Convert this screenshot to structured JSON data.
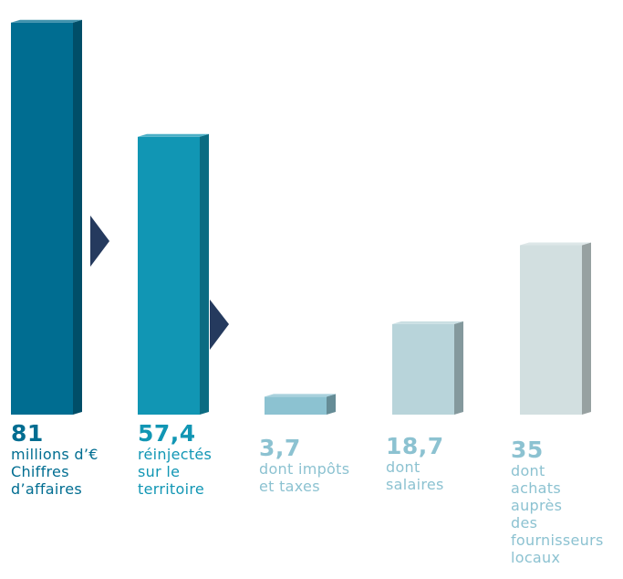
{
  "chart_data": {
    "type": "bar",
    "style": "3d-bar-waterfall",
    "values": [
      81,
      57.4,
      3.7,
      18.7,
      35
    ],
    "value_labels": [
      "81",
      "57,4",
      "3,7",
      "18,7",
      "35"
    ],
    "descriptions": [
      [
        "millions d’€",
        "Chiffres",
        "d’affaires"
      ],
      [
        "réinjectés",
        "sur le",
        "territoire"
      ],
      [
        "dont impôts",
        "et taxes"
      ],
      [
        "dont",
        "salaires"
      ],
      [
        "dont",
        "achats",
        "auprès",
        "des",
        "fournisseurs",
        "locaux"
      ]
    ],
    "colors": {
      "fronts": [
        "#006d91",
        "#1196b4",
        "#8cc2d1",
        "#b8d4da",
        "#d2dfe0"
      ],
      "arrow": "#253a5e",
      "text_dark": "#006d91",
      "text_mid": "#1196b4",
      "text_light": "#8cc2d1"
    },
    "label_colors": [
      "#006d91",
      "#1196b4",
      "#8cc2d1",
      "#8cc2d1",
      "#8cc2d1"
    ],
    "arrows": "between first three bars",
    "axes": "none",
    "grid": false,
    "legend": "none"
  }
}
